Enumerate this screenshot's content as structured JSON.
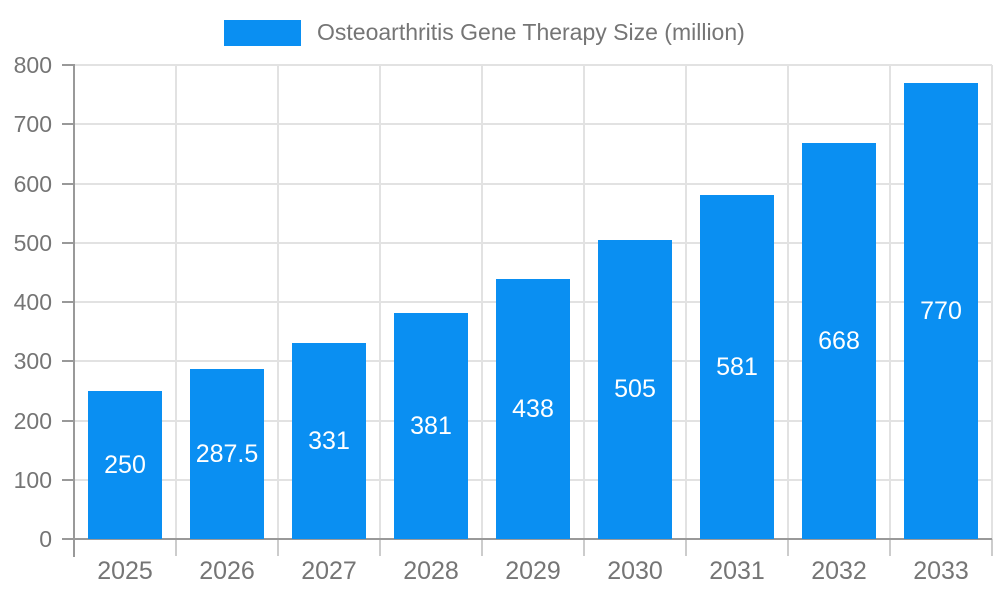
{
  "legend": {
    "label": "Osteoarthritis Gene Therapy Size (million)"
  },
  "colors": {
    "bar": "#0a8ff2",
    "axis": "#999999",
    "grid": "#e2e2e2",
    "x_tick": "#cccccc",
    "axis_text": "#757575",
    "value_text": "#ffffff",
    "background": "#ffffff"
  },
  "chart_data": {
    "type": "bar",
    "title": "Osteoarthritis Gene Therapy Size (million)",
    "series": [
      {
        "name": "Osteoarthritis Gene Therapy Size (million)",
        "values": [
          250,
          287.5,
          331,
          381,
          438,
          505,
          581,
          668,
          770
        ]
      }
    ],
    "categories": [
      "2025",
      "2026",
      "2027",
      "2028",
      "2029",
      "2030",
      "2031",
      "2032",
      "2033"
    ],
    "value_labels": [
      "250",
      "287.5",
      "331",
      "381",
      "438",
      "505",
      "581",
      "668",
      "770"
    ],
    "xlabel": "",
    "ylabel": "",
    "ylim": [
      0,
      800
    ],
    "yticks": [
      0,
      100,
      200,
      300,
      400,
      500,
      600,
      700,
      800
    ],
    "grid": "on",
    "legend_position": "top"
  }
}
